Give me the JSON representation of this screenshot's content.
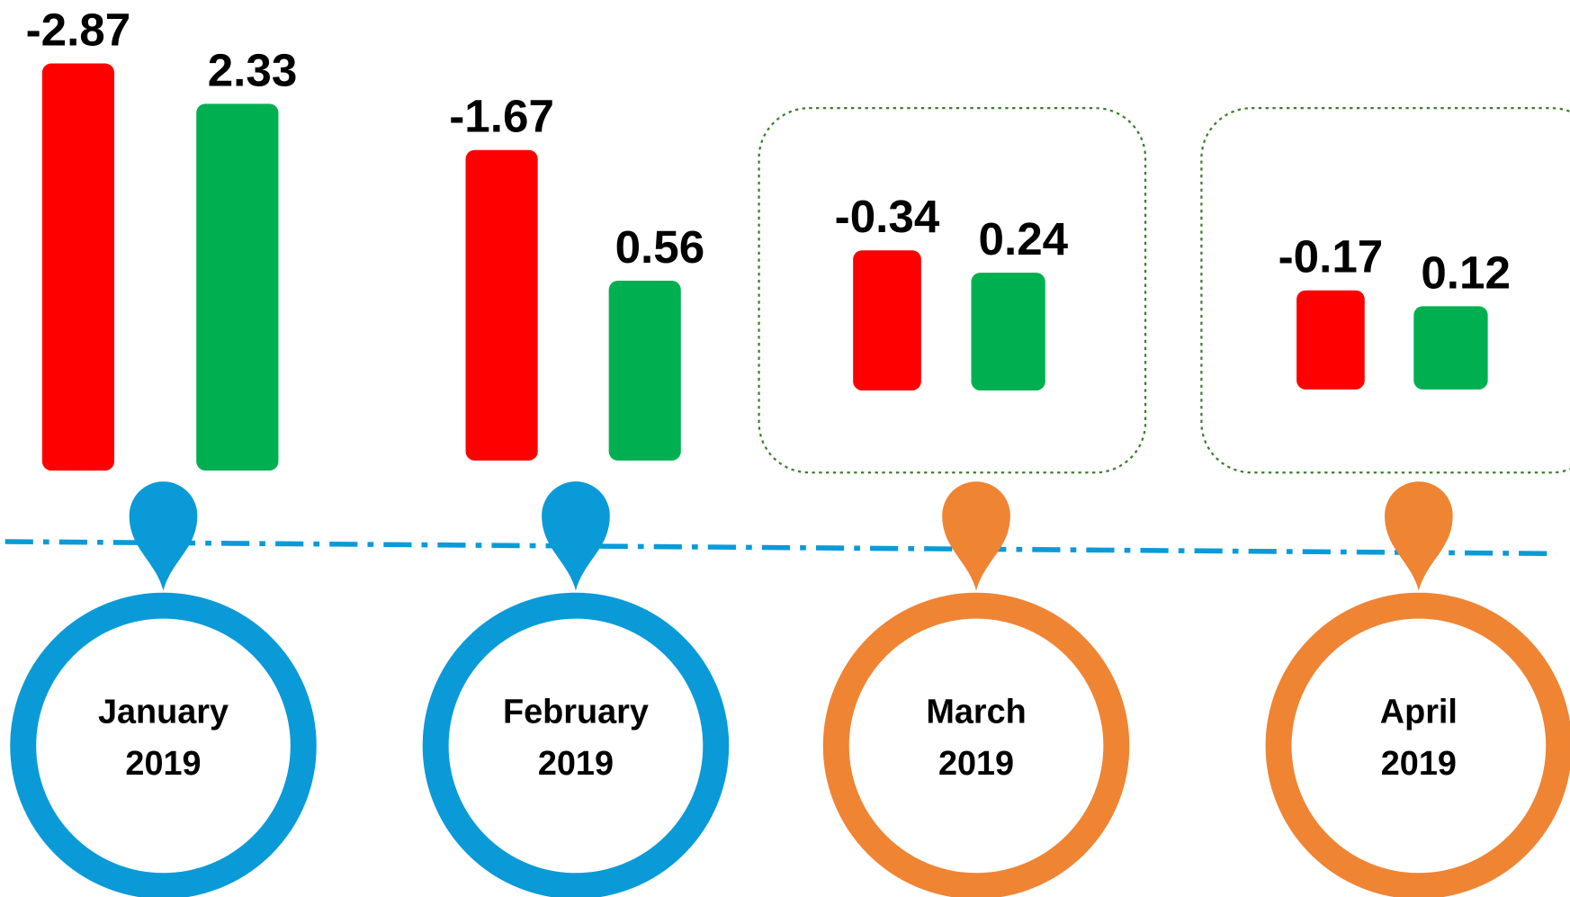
{
  "chart_data": {
    "type": "bar",
    "categories": [
      [
        "January",
        "2019"
      ],
      [
        "February",
        "2019"
      ],
      [
        "March",
        "2019"
      ],
      [
        "April",
        "2019"
      ]
    ],
    "category_colors": [
      "#0a9ad8",
      "#0a9ad8",
      "#ef8433",
      "#ef8433"
    ],
    "series": [
      {
        "color": "#ff0000",
        "values": [
          -2.87,
          -1.67,
          -0.34,
          -0.17
        ]
      },
      {
        "color": "#00b050",
        "values": [
          2.33,
          0.56,
          0.24,
          0.12
        ]
      }
    ]
  }
}
